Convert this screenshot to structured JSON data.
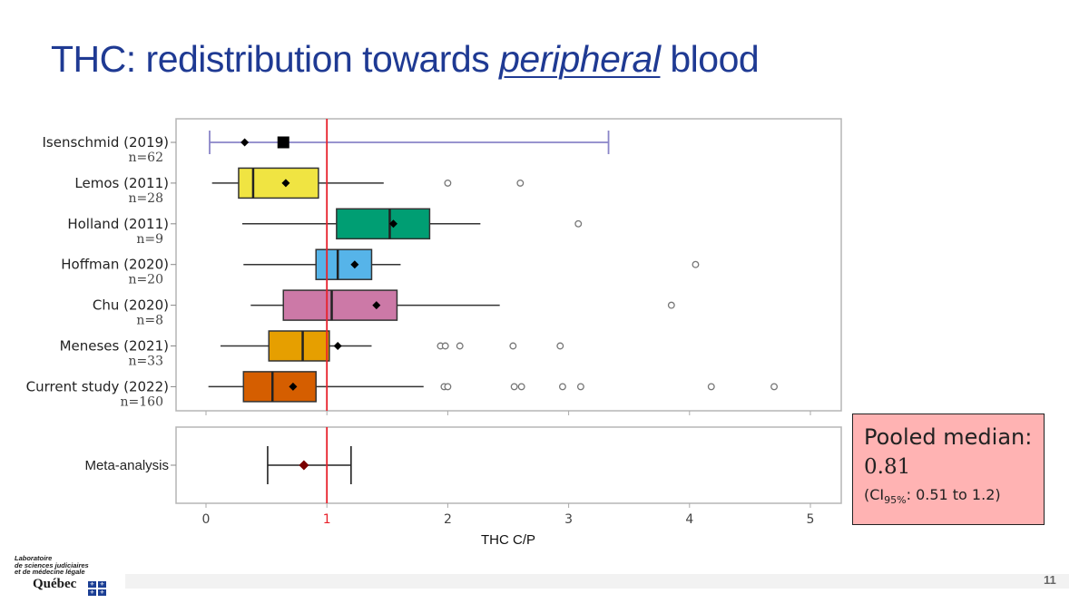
{
  "slide": {
    "title_pre": "THC: redistribution towards ",
    "title_emph": "peripheral",
    "title_post": " blood",
    "page_number": "11"
  },
  "pooled_box": {
    "heading": "Pooled median:",
    "value": "0.81",
    "ci_prefix": "(CI",
    "ci_sub": "95%",
    "ci_suffix": ": 0.51 to 1.2)"
  },
  "logo": {
    "line1": "Laboratoire",
    "line2": "de sciences judiciaires",
    "line3": "et de médecine légale",
    "quebec": "Québec",
    "flag_glyph": "⚜"
  },
  "chart_data": {
    "type": "box",
    "xlabel": "THC C/P",
    "xlim": [
      -0.2,
      5.2
    ],
    "xticks": [
      0,
      1,
      2,
      3,
      4,
      5
    ],
    "xtick_labels": [
      "0",
      "1",
      "2",
      "3",
      "4",
      "5"
    ],
    "reference_line": 1,
    "colors": {
      "reference": "#e8202a",
      "axis_text": "#444444",
      "frame": "#b5b5b5"
    },
    "studies": [
      {
        "label": "Isenschmid (2019)",
        "n": "n=62",
        "kind": "range",
        "min": 0.03,
        "max": 3.33,
        "median": 0.64,
        "mean": 0.32,
        "color": "#8a85c8"
      },
      {
        "label": "Lemos (2011)",
        "n": "n=28",
        "kind": "box",
        "whisker_low": 0.05,
        "q1": 0.27,
        "median": 0.39,
        "q3": 0.93,
        "whisker_high": 1.47,
        "mean": 0.66,
        "outliers": [
          2.0,
          2.6
        ],
        "color": "#f0e442"
      },
      {
        "label": "Holland (2011)",
        "n": "n=9",
        "kind": "box",
        "whisker_low": 0.3,
        "q1": 1.08,
        "median": 1.52,
        "q3": 1.85,
        "whisker_high": 2.27,
        "mean": 1.55,
        "outliers": [
          3.08
        ],
        "color": "#009e73"
      },
      {
        "label": "Hoffman (2020)",
        "n": "n=20",
        "kind": "box",
        "whisker_low": 0.31,
        "q1": 0.91,
        "median": 1.09,
        "q3": 1.37,
        "whisker_high": 1.61,
        "mean": 1.23,
        "outliers": [
          4.05
        ],
        "color": "#56b4e9"
      },
      {
        "label": "Chu (2020)",
        "n": "n=8",
        "kind": "box",
        "whisker_low": 0.37,
        "q1": 0.64,
        "median": 1.04,
        "q3": 1.58,
        "whisker_high": 2.43,
        "mean": 1.41,
        "outliers": [
          3.85
        ],
        "color": "#cc79a7"
      },
      {
        "label": "Meneses (2021)",
        "n": "n=33",
        "kind": "box",
        "whisker_low": 0.12,
        "q1": 0.52,
        "median": 0.8,
        "q3": 1.02,
        "whisker_high": 1.37,
        "mean": 1.09,
        "outliers": [
          1.94,
          1.98,
          2.1,
          2.54,
          2.93
        ],
        "color": "#e69f00"
      },
      {
        "label": "Current study (2022)",
        "n": "n=160",
        "kind": "box",
        "whisker_low": 0.02,
        "q1": 0.31,
        "median": 0.55,
        "q3": 0.91,
        "whisker_high": 1.8,
        "mean": 0.72,
        "outliers": [
          1.97,
          2.0,
          2.55,
          2.61,
          2.95,
          3.1,
          4.18,
          4.7
        ],
        "color": "#d55e00"
      }
    ],
    "meta_analysis": {
      "label": "Meta-analysis",
      "estimate": 0.81,
      "ci_low": 0.51,
      "ci_high": 1.2,
      "color": "#7a0000"
    }
  }
}
